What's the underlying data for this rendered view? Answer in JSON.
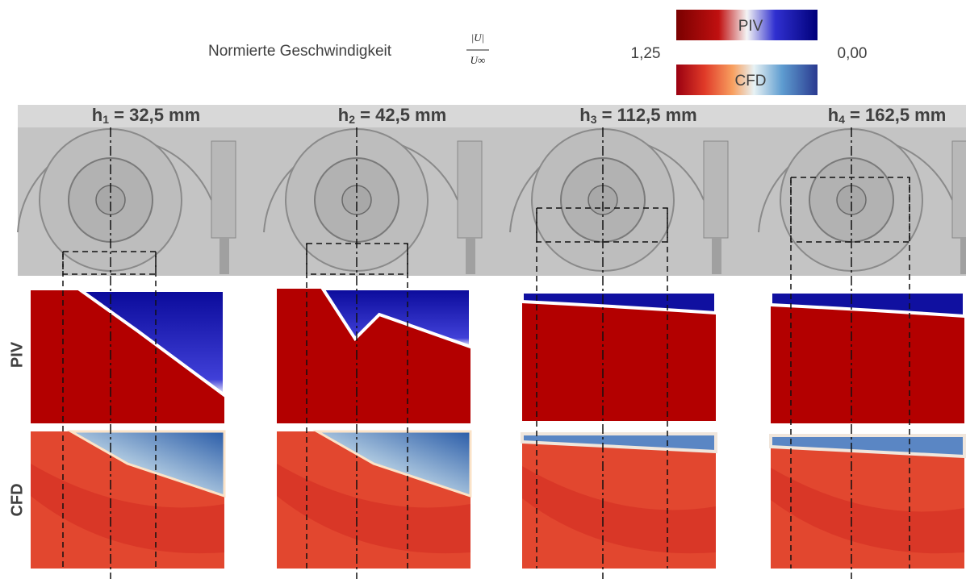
{
  "legend": {
    "quantity": "Normierte Geschwindigkeit",
    "formula_numerator": "|U|",
    "formula_denominator": "U∞",
    "bar_top_label": "PIV",
    "bar_bottom_label": "CFD",
    "max_label": "1,25",
    "min_label": "0,00"
  },
  "row_labels": [
    "PIV",
    "CFD"
  ],
  "panels": [
    {
      "symbol": "h",
      "index": "1",
      "rest": " = 32,5 mm"
    },
    {
      "symbol": "h",
      "index": "2",
      "rest": " = 42,5 mm"
    },
    {
      "symbol": "h",
      "index": "3",
      "rest": " = 112,5 mm"
    },
    {
      "symbol": "h",
      "index": "4",
      "rest": " = 162,5 mm"
    }
  ]
}
